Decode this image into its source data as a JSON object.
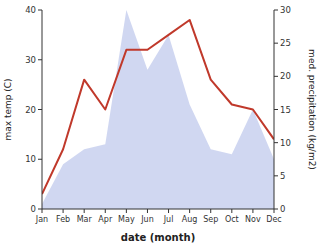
{
  "chart_data": {
    "type": "line",
    "categories": [
      "Jan",
      "Feb",
      "Mar",
      "Apr",
      "May",
      "Jun",
      "Jul",
      "Aug",
      "Sep",
      "Oct",
      "Nov",
      "Dec"
    ],
    "series": [
      {
        "type": "area",
        "color": "#b0bce8",
        "values": [
          1,
          9,
          12,
          13,
          40,
          28,
          35,
          21,
          12,
          11,
          20,
          10
        ]
      },
      {
        "type": "line",
        "color": "#c0392b",
        "values": [
          3,
          12,
          26,
          20,
          32,
          32,
          35,
          38,
          26,
          21,
          20,
          14
        ]
      }
    ],
    "xlabel": "date (month)",
    "ylabel": "max temp (C)",
    "y2label": "med. precipitation (kg/m2)",
    "ylim": [
      0,
      40
    ],
    "yticks": [
      0,
      10,
      20,
      30,
      40
    ],
    "y2lim": [
      0,
      30
    ],
    "y2ticks": [
      0,
      5,
      10,
      15,
      20,
      25,
      30
    ],
    "grid": false
  }
}
